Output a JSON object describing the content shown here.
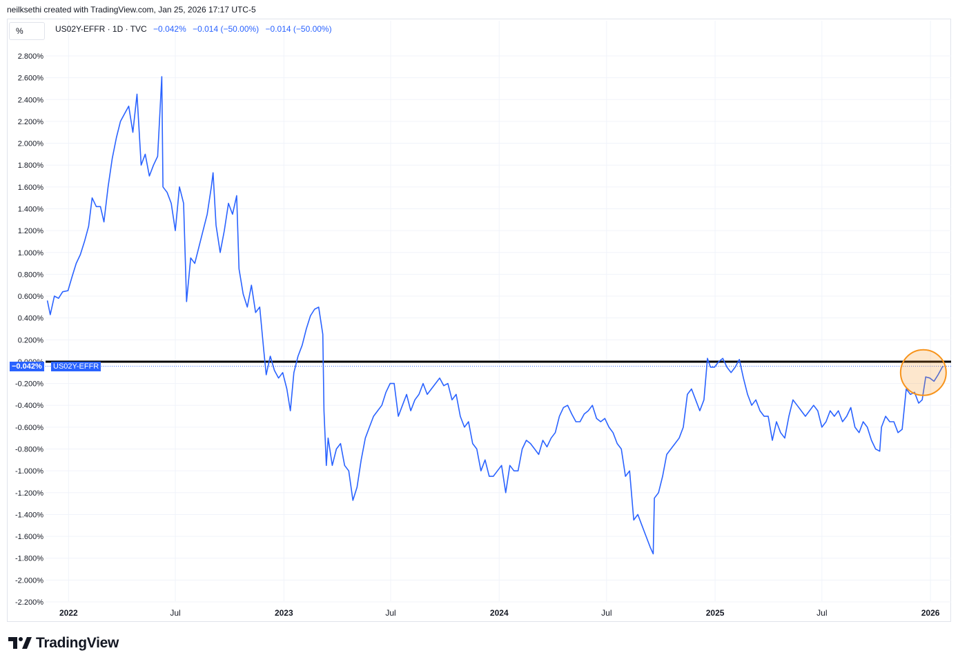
{
  "header": {
    "credit": "neilksethi created with TradingView.com, Jan 25, 2026 17:17 UTC-5"
  },
  "unit_label": "%",
  "legend": {
    "symbol": "US02Y-EFFR · 1D · TVC",
    "value": "−0.042%",
    "change1": "−0.014 (−50.00%)",
    "change2": "−0.014 (−50.00%)"
  },
  "price_badge": {
    "value": "−0.042%",
    "label": "US02Y-EFFR"
  },
  "brand": {
    "name": "TradingView"
  },
  "colors": {
    "line": "#2962ff",
    "zero_line": "#000000",
    "highlight": "#f7931a",
    "grid": "#f0f3fa"
  },
  "chart_data": {
    "type": "line",
    "title": "",
    "xlabel": "",
    "ylabel": "%",
    "ylim": [
      -2.2,
      2.8
    ],
    "yticks": [
      "2.800%",
      "2.600%",
      "2.400%",
      "2.200%",
      "2.000%",
      "1.800%",
      "1.600%",
      "1.400%",
      "1.200%",
      "1.000%",
      "0.800%",
      "0.600%",
      "0.400%",
      "0.200%",
      "0.000%",
      "-0.200%",
      "-0.400%",
      "-0.600%",
      "-0.800%",
      "-1.000%",
      "-1.200%",
      "-1.400%",
      "-1.600%",
      "-1.800%",
      "-2.000%",
      "-2.200%"
    ],
    "xticks": [
      {
        "label": "2022",
        "date": "2022-01-01",
        "major": true
      },
      {
        "label": "Jul",
        "date": "2022-07-01",
        "major": false
      },
      {
        "label": "2023",
        "date": "2023-01-01",
        "major": true
      },
      {
        "label": "Jul",
        "date": "2023-07-01",
        "major": false
      },
      {
        "label": "2024",
        "date": "2024-01-01",
        "major": true
      },
      {
        "label": "Jul",
        "date": "2024-07-01",
        "major": false
      },
      {
        "label": "2025",
        "date": "2025-01-01",
        "major": true
      },
      {
        "label": "Jul",
        "date": "2025-07-01",
        "major": false
      },
      {
        "label": "2026",
        "date": "2026-01-01",
        "major": true
      }
    ],
    "xrange": [
      "2021-11-23",
      "2026-02-05"
    ],
    "grid": true,
    "horizontal_line": 0.0,
    "highlight_circle_date": "2025-12-20",
    "highlight_circle_value": -0.1,
    "series": [
      {
        "name": "US02Y-EFFR",
        "points": [
          [
            "2021-11-26",
            0.56
          ],
          [
            "2021-12-01",
            0.43
          ],
          [
            "2021-12-08",
            0.6
          ],
          [
            "2021-12-15",
            0.58
          ],
          [
            "2021-12-22",
            0.64
          ],
          [
            "2021-12-31",
            0.65
          ],
          [
            "2022-01-07",
            0.78
          ],
          [
            "2022-01-14",
            0.9
          ],
          [
            "2022-01-21",
            0.98
          ],
          [
            "2022-01-28",
            1.1
          ],
          [
            "2022-02-04",
            1.24
          ],
          [
            "2022-02-10",
            1.5
          ],
          [
            "2022-02-17",
            1.42
          ],
          [
            "2022-02-24",
            1.42
          ],
          [
            "2022-03-02",
            1.28
          ],
          [
            "2022-03-09",
            1.6
          ],
          [
            "2022-03-16",
            1.86
          ],
          [
            "2022-03-23",
            2.05
          ],
          [
            "2022-03-30",
            2.2
          ],
          [
            "2022-04-06",
            2.27
          ],
          [
            "2022-04-13",
            2.34
          ],
          [
            "2022-04-20",
            2.1
          ],
          [
            "2022-04-27",
            2.45
          ],
          [
            "2022-05-04",
            1.8
          ],
          [
            "2022-05-11",
            1.9
          ],
          [
            "2022-05-18",
            1.7
          ],
          [
            "2022-05-25",
            1.8
          ],
          [
            "2022-06-01",
            1.88
          ],
          [
            "2022-06-08",
            2.61
          ],
          [
            "2022-06-10",
            1.6
          ],
          [
            "2022-06-17",
            1.55
          ],
          [
            "2022-06-24",
            1.45
          ],
          [
            "2022-07-01",
            1.2
          ],
          [
            "2022-07-08",
            1.6
          ],
          [
            "2022-07-15",
            1.45
          ],
          [
            "2022-07-20",
            0.55
          ],
          [
            "2022-07-27",
            0.95
          ],
          [
            "2022-08-03",
            0.9
          ],
          [
            "2022-08-10",
            1.05
          ],
          [
            "2022-08-17",
            1.2
          ],
          [
            "2022-08-24",
            1.35
          ],
          [
            "2022-08-31",
            1.6
          ],
          [
            "2022-09-03",
            1.73
          ],
          [
            "2022-09-08",
            1.25
          ],
          [
            "2022-09-15",
            1.0
          ],
          [
            "2022-09-22",
            1.2
          ],
          [
            "2022-09-29",
            1.45
          ],
          [
            "2022-10-06",
            1.35
          ],
          [
            "2022-10-13",
            1.52
          ],
          [
            "2022-10-17",
            0.85
          ],
          [
            "2022-10-24",
            0.62
          ],
          [
            "2022-10-31",
            0.5
          ],
          [
            "2022-11-07",
            0.7
          ],
          [
            "2022-11-14",
            0.45
          ],
          [
            "2022-11-21",
            0.5
          ],
          [
            "2022-11-28",
            0.1
          ],
          [
            "2022-12-02",
            -0.12
          ],
          [
            "2022-12-09",
            0.05
          ],
          [
            "2022-12-16",
            -0.08
          ],
          [
            "2022-12-23",
            -0.15
          ],
          [
            "2022-12-30",
            -0.1
          ],
          [
            "2023-01-06",
            -0.25
          ],
          [
            "2023-01-12",
            -0.45
          ],
          [
            "2023-01-18",
            -0.1
          ],
          [
            "2023-01-25",
            0.05
          ],
          [
            "2023-02-01",
            0.15
          ],
          [
            "2023-02-08",
            0.3
          ],
          [
            "2023-02-15",
            0.42
          ],
          [
            "2023-02-22",
            0.48
          ],
          [
            "2023-03-01",
            0.5
          ],
          [
            "2023-03-08",
            0.25
          ],
          [
            "2023-03-10",
            -0.45
          ],
          [
            "2023-03-14",
            -0.95
          ],
          [
            "2023-03-17",
            -0.7
          ],
          [
            "2023-03-24",
            -0.95
          ],
          [
            "2023-03-31",
            -0.8
          ],
          [
            "2023-04-07",
            -0.75
          ],
          [
            "2023-04-14",
            -0.95
          ],
          [
            "2023-04-21",
            -1.0
          ],
          [
            "2023-04-28",
            -1.27
          ],
          [
            "2023-05-05",
            -1.15
          ],
          [
            "2023-05-12",
            -0.9
          ],
          [
            "2023-05-19",
            -0.7
          ],
          [
            "2023-05-26",
            -0.6
          ],
          [
            "2023-06-02",
            -0.5
          ],
          [
            "2023-06-09",
            -0.45
          ],
          [
            "2023-06-16",
            -0.4
          ],
          [
            "2023-06-23",
            -0.28
          ],
          [
            "2023-06-30",
            -0.2
          ],
          [
            "2023-07-07",
            -0.2
          ],
          [
            "2023-07-14",
            -0.5
          ],
          [
            "2023-07-21",
            -0.4
          ],
          [
            "2023-07-28",
            -0.3
          ],
          [
            "2023-08-04",
            -0.45
          ],
          [
            "2023-08-11",
            -0.35
          ],
          [
            "2023-08-18",
            -0.3
          ],
          [
            "2023-08-25",
            -0.2
          ],
          [
            "2023-09-01",
            -0.3
          ],
          [
            "2023-09-08",
            -0.25
          ],
          [
            "2023-09-15",
            -0.2
          ],
          [
            "2023-09-22",
            -0.15
          ],
          [
            "2023-09-29",
            -0.22
          ],
          [
            "2023-10-06",
            -0.2
          ],
          [
            "2023-10-13",
            -0.35
          ],
          [
            "2023-10-20",
            -0.3
          ],
          [
            "2023-10-27",
            -0.5
          ],
          [
            "2023-11-03",
            -0.6
          ],
          [
            "2023-11-10",
            -0.55
          ],
          [
            "2023-11-17",
            -0.75
          ],
          [
            "2023-11-24",
            -0.8
          ],
          [
            "2023-12-01",
            -1.0
          ],
          [
            "2023-12-08",
            -0.9
          ],
          [
            "2023-12-15",
            -1.05
          ],
          [
            "2023-12-22",
            -1.05
          ],
          [
            "2023-12-29",
            -1.0
          ],
          [
            "2024-01-05",
            -0.95
          ],
          [
            "2024-01-12",
            -1.2
          ],
          [
            "2024-01-19",
            -0.95
          ],
          [
            "2024-01-26",
            -1.0
          ],
          [
            "2024-02-02",
            -1.0
          ],
          [
            "2024-02-09",
            -0.8
          ],
          [
            "2024-02-16",
            -0.72
          ],
          [
            "2024-02-23",
            -0.75
          ],
          [
            "2024-03-01",
            -0.8
          ],
          [
            "2024-03-08",
            -0.85
          ],
          [
            "2024-03-15",
            -0.72
          ],
          [
            "2024-03-22",
            -0.78
          ],
          [
            "2024-03-29",
            -0.7
          ],
          [
            "2024-04-05",
            -0.65
          ],
          [
            "2024-04-12",
            -0.5
          ],
          [
            "2024-04-19",
            -0.42
          ],
          [
            "2024-04-26",
            -0.4
          ],
          [
            "2024-05-03",
            -0.48
          ],
          [
            "2024-05-10",
            -0.55
          ],
          [
            "2024-05-17",
            -0.55
          ],
          [
            "2024-05-24",
            -0.48
          ],
          [
            "2024-05-31",
            -0.45
          ],
          [
            "2024-06-07",
            -0.4
          ],
          [
            "2024-06-14",
            -0.52
          ],
          [
            "2024-06-21",
            -0.55
          ],
          [
            "2024-06-28",
            -0.52
          ],
          [
            "2024-07-05",
            -0.6
          ],
          [
            "2024-07-12",
            -0.65
          ],
          [
            "2024-07-19",
            -0.75
          ],
          [
            "2024-07-26",
            -0.8
          ],
          [
            "2024-08-02",
            -1.05
          ],
          [
            "2024-08-09",
            -1.0
          ],
          [
            "2024-08-16",
            -1.45
          ],
          [
            "2024-08-23",
            -1.4
          ],
          [
            "2024-08-30",
            -1.5
          ],
          [
            "2024-09-06",
            -1.6
          ],
          [
            "2024-09-13",
            -1.7
          ],
          [
            "2024-09-18",
            -1.76
          ],
          [
            "2024-09-20",
            -1.25
          ],
          [
            "2024-09-27",
            -1.2
          ],
          [
            "2024-10-04",
            -1.05
          ],
          [
            "2024-10-11",
            -0.85
          ],
          [
            "2024-10-18",
            -0.8
          ],
          [
            "2024-10-25",
            -0.75
          ],
          [
            "2024-11-01",
            -0.7
          ],
          [
            "2024-11-08",
            -0.6
          ],
          [
            "2024-11-15",
            -0.3
          ],
          [
            "2024-11-22",
            -0.25
          ],
          [
            "2024-11-29",
            -0.35
          ],
          [
            "2024-12-06",
            -0.45
          ],
          [
            "2024-12-13",
            -0.35
          ],
          [
            "2024-12-19",
            0.03
          ],
          [
            "2024-12-24",
            -0.05
          ],
          [
            "2024-12-31",
            -0.05
          ],
          [
            "2025-01-07",
            0.0
          ],
          [
            "2025-01-14",
            0.03
          ],
          [
            "2025-01-21",
            -0.05
          ],
          [
            "2025-01-28",
            -0.1
          ],
          [
            "2025-02-04",
            -0.05
          ],
          [
            "2025-02-11",
            0.02
          ],
          [
            "2025-02-18",
            -0.15
          ],
          [
            "2025-02-25",
            -0.3
          ],
          [
            "2025-03-04",
            -0.4
          ],
          [
            "2025-03-11",
            -0.35
          ],
          [
            "2025-03-18",
            -0.45
          ],
          [
            "2025-03-25",
            -0.5
          ],
          [
            "2025-04-01",
            -0.5
          ],
          [
            "2025-04-08",
            -0.72
          ],
          [
            "2025-04-15",
            -0.55
          ],
          [
            "2025-04-22",
            -0.65
          ],
          [
            "2025-04-29",
            -0.7
          ],
          [
            "2025-05-06",
            -0.5
          ],
          [
            "2025-05-13",
            -0.35
          ],
          [
            "2025-05-20",
            -0.4
          ],
          [
            "2025-05-27",
            -0.45
          ],
          [
            "2025-06-03",
            -0.5
          ],
          [
            "2025-06-10",
            -0.45
          ],
          [
            "2025-06-17",
            -0.4
          ],
          [
            "2025-06-24",
            -0.45
          ],
          [
            "2025-07-01",
            -0.6
          ],
          [
            "2025-07-08",
            -0.55
          ],
          [
            "2025-07-15",
            -0.45
          ],
          [
            "2025-07-22",
            -0.5
          ],
          [
            "2025-07-29",
            -0.45
          ],
          [
            "2025-08-05",
            -0.55
          ],
          [
            "2025-08-12",
            -0.5
          ],
          [
            "2025-08-19",
            -0.42
          ],
          [
            "2025-08-26",
            -0.6
          ],
          [
            "2025-09-02",
            -0.65
          ],
          [
            "2025-09-09",
            -0.55
          ],
          [
            "2025-09-16",
            -0.6
          ],
          [
            "2025-09-23",
            -0.72
          ],
          [
            "2025-09-30",
            -0.8
          ],
          [
            "2025-10-07",
            -0.82
          ],
          [
            "2025-10-10",
            -0.6
          ],
          [
            "2025-10-17",
            -0.5
          ],
          [
            "2025-10-24",
            -0.55
          ],
          [
            "2025-10-31",
            -0.55
          ],
          [
            "2025-11-07",
            -0.65
          ],
          [
            "2025-11-14",
            -0.62
          ],
          [
            "2025-11-21",
            -0.25
          ],
          [
            "2025-11-28",
            -0.3
          ],
          [
            "2025-12-05",
            -0.28
          ],
          [
            "2025-12-12",
            -0.38
          ],
          [
            "2025-12-18",
            -0.35
          ],
          [
            "2025-12-24",
            -0.14
          ],
          [
            "2025-12-31",
            -0.15
          ],
          [
            "2026-01-07",
            -0.18
          ],
          [
            "2026-01-14",
            -0.12
          ],
          [
            "2026-01-21",
            -0.05
          ],
          [
            "2026-01-23",
            -0.042
          ]
        ]
      }
    ]
  }
}
